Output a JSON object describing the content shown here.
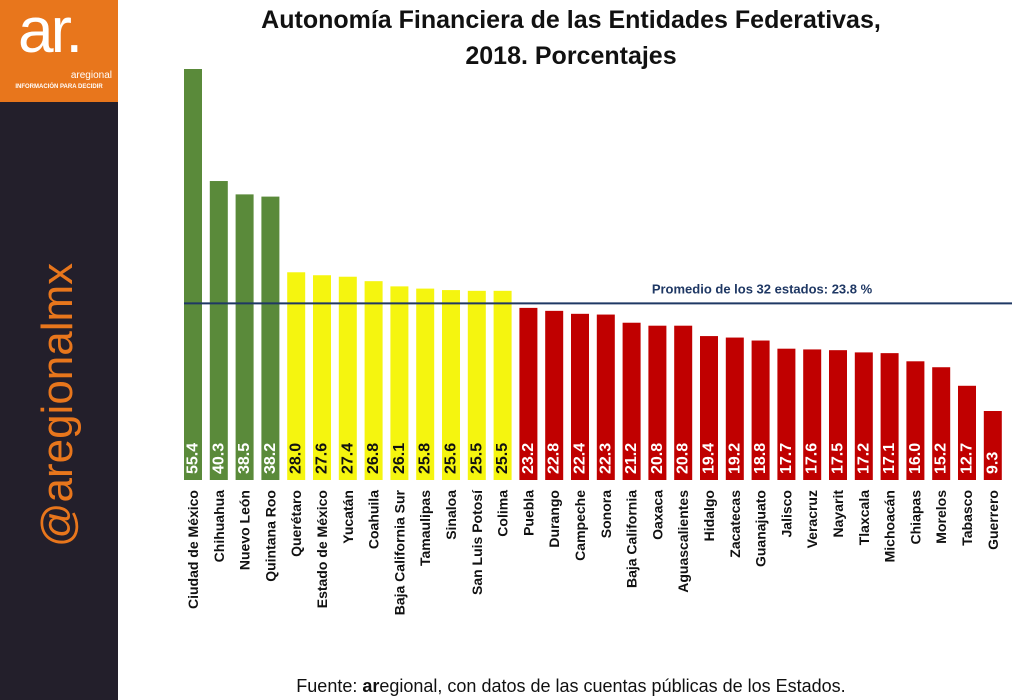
{
  "brand": {
    "logo_text": "ar.",
    "logo_name": "aregional",
    "tagline": "INFORMACIÓN PARA DECIDIR",
    "handle": "@aregionalmx",
    "colors": {
      "orange": "#e8761c",
      "dark": "#231f2b"
    }
  },
  "title_line1": "Autonomía Financiera de las Entidades Federativas,",
  "title_line2": "2018. Porcentajes",
  "source": {
    "prefix": "Fuente: ",
    "brand_bold": "ar",
    "brand_rest": "egional",
    "suffix": ", con datos de las cuentas públicas de los Estados."
  },
  "chart_data": {
    "type": "bar",
    "title": "Autonomía Financiera de las Entidades Federativas, 2018. Porcentajes",
    "xlabel": "",
    "ylabel": "",
    "ylim": [
      0,
      55.4
    ],
    "categories": [
      "Ciudad de México",
      "Chihuahua",
      "Nuevo León",
      "Quintana Roo",
      "Querétaro",
      "Estado de México",
      "Yucatán",
      "Coahuila",
      "Baja California Sur",
      "Tamaulipas",
      "Sinaloa",
      "San Luis Potosí",
      "Colima",
      "Puebla",
      "Durango",
      "Campeche",
      "Sonora",
      "Baja California",
      "Oaxaca",
      "Aguascalientes",
      "Hidalgo",
      "Zacatecas",
      "Guanajuato",
      "Jalisco",
      "Veracruz",
      "Nayarit",
      "Tlaxcala",
      "Michoacán",
      "Chiapas",
      "Morelos",
      "Tabasco",
      "Guerrero"
    ],
    "values": [
      55.4,
      40.3,
      38.5,
      38.2,
      28.0,
      27.6,
      27.4,
      26.8,
      26.1,
      25.8,
      25.6,
      25.5,
      25.5,
      23.2,
      22.8,
      22.4,
      22.3,
      21.2,
      20.8,
      20.8,
      19.4,
      19.2,
      18.8,
      17.7,
      17.6,
      17.5,
      17.2,
      17.1,
      16.0,
      15.2,
      12.7,
      9.3
    ],
    "value_labels": [
      "55.4",
      "40.3",
      "38.5",
      "38.2",
      "28.0",
      "27.6",
      "27.4",
      "26.8",
      "26.1",
      "25.8",
      "25.6",
      "25.5",
      "25.5",
      "23.2",
      "22.8",
      "22.4",
      "22.3",
      "21.2",
      "20.8",
      "20.8",
      "19.4",
      "19.2",
      "18.8",
      "17.7",
      "17.6",
      "17.5",
      "17.2",
      "17.1",
      "16.0",
      "15.2",
      "12.7",
      "9.3"
    ],
    "color_groups": [
      {
        "color": "#5a8a3a",
        "count": 4
      },
      {
        "color": "#f5f50f",
        "count": 9
      },
      {
        "color": "#c00000",
        "count": 19
      }
    ],
    "reference_line": {
      "value": 23.8,
      "label": "Promedio de los 32 estados: 23.8 %",
      "color": "#1f3864"
    },
    "grid": false,
    "legend": "none"
  }
}
